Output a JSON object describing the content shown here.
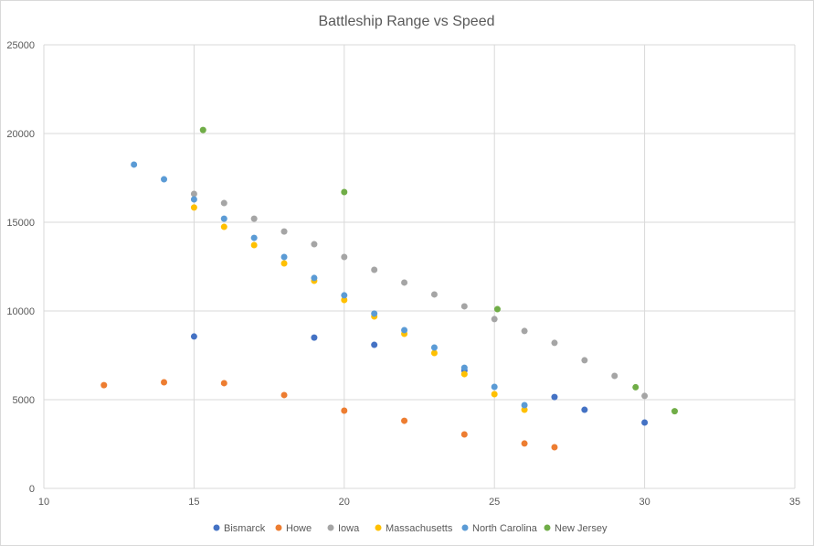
{
  "chart_data": {
    "type": "scatter",
    "title": "Battleship Range vs Speed",
    "xlabel": "",
    "ylabel": "",
    "xlim": [
      10,
      35
    ],
    "ylim": [
      0,
      25000
    ],
    "x_ticks": [
      "10",
      "15",
      "20",
      "25",
      "30",
      "35"
    ],
    "y_ticks": [
      "0",
      "5000",
      "10000",
      "15000",
      "20000",
      "25000"
    ],
    "grid": true,
    "legend_position": "bottom",
    "series": [
      {
        "name": "Bismarck",
        "color": "#4472C4",
        "points": [
          [
            15,
            8560
          ],
          [
            19,
            8500
          ],
          [
            21,
            8090
          ],
          [
            24,
            6650
          ],
          [
            27,
            5150
          ],
          [
            28,
            4430
          ],
          [
            30,
            3710
          ]
        ]
      },
      {
        "name": "Howe",
        "color": "#ED7D31",
        "points": [
          [
            12,
            5820
          ],
          [
            14,
            5980
          ],
          [
            16,
            5930
          ],
          [
            18,
            5260
          ],
          [
            20,
            4380
          ],
          [
            22,
            3810
          ],
          [
            24,
            3040
          ],
          [
            26,
            2530
          ],
          [
            27,
            2320
          ]
        ]
      },
      {
        "name": "Iowa",
        "color": "#A5A5A5",
        "points": [
          [
            15,
            16600
          ],
          [
            16,
            16080
          ],
          [
            17,
            15200
          ],
          [
            18,
            14480
          ],
          [
            19,
            13760
          ],
          [
            20,
            13040
          ],
          [
            21,
            12320
          ],
          [
            22,
            11600
          ],
          [
            23,
            10930
          ],
          [
            24,
            10260
          ],
          [
            25,
            9540
          ],
          [
            26,
            8870
          ],
          [
            27,
            8200
          ],
          [
            28,
            7220
          ],
          [
            29,
            6340
          ],
          [
            30,
            5210
          ]
        ]
      },
      {
        "name": "Massachusetts",
        "color": "#FFC000",
        "points": [
          [
            15,
            15830
          ],
          [
            16,
            14740
          ],
          [
            17,
            13710
          ],
          [
            18,
            12680
          ],
          [
            19,
            11700
          ],
          [
            20,
            10620
          ],
          [
            21,
            9690
          ],
          [
            22,
            8710
          ],
          [
            23,
            7630
          ],
          [
            24,
            6440
          ],
          [
            25,
            5310
          ],
          [
            26,
            4430
          ]
        ]
      },
      {
        "name": "North Carolina",
        "color": "#5B9BD5",
        "points": [
          [
            13,
            18250
          ],
          [
            14,
            17420
          ],
          [
            15,
            16290
          ],
          [
            16,
            15200
          ],
          [
            17,
            14120
          ],
          [
            18,
            13040
          ],
          [
            19,
            11860
          ],
          [
            20,
            10880
          ],
          [
            21,
            9850
          ],
          [
            22,
            8920
          ],
          [
            23,
            7940
          ],
          [
            24,
            6800
          ],
          [
            25,
            5720
          ],
          [
            26,
            4690
          ]
        ]
      },
      {
        "name": "New Jersey",
        "color": "#70AD47",
        "points": [
          [
            15.3,
            20200
          ],
          [
            20,
            16700
          ],
          [
            25.1,
            10100
          ],
          [
            29.7,
            5700
          ],
          [
            31,
            4350
          ]
        ]
      }
    ]
  }
}
